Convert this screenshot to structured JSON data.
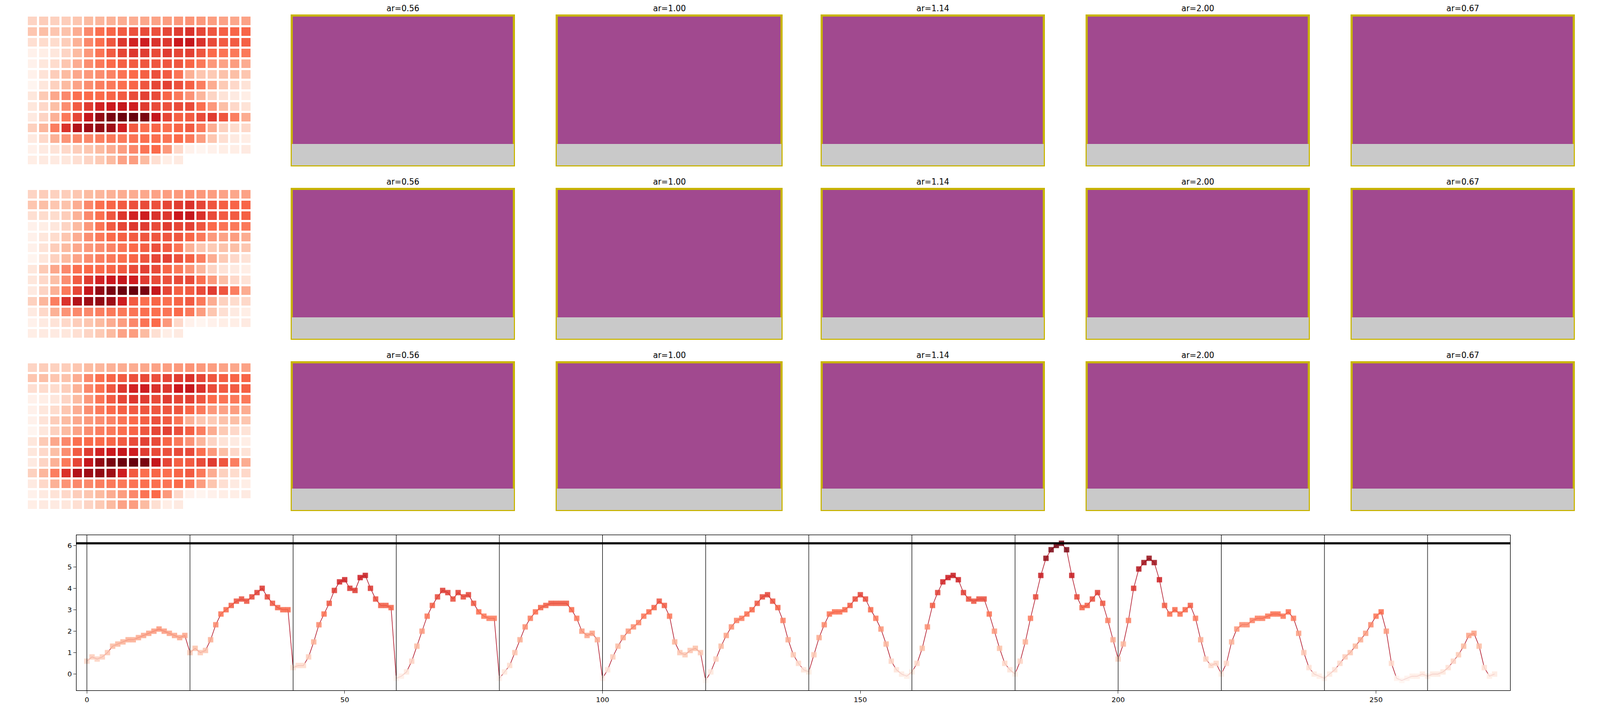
{
  "chart_data": [
    {
      "type": "line",
      "x": [
        0,
        1,
        2,
        3,
        4,
        5,
        6,
        7,
        8,
        9,
        10,
        11,
        12,
        13,
        14,
        15,
        16,
        17,
        18,
        19,
        20,
        21,
        22,
        23,
        24,
        25,
        26,
        27,
        28,
        29,
        30,
        31,
        32,
        33,
        34,
        35,
        36,
        37,
        38,
        39,
        40,
        41,
        42,
        43,
        44,
        45,
        46,
        47,
        48,
        49,
        50,
        51,
        52,
        53,
        54,
        55,
        56,
        57,
        58,
        59,
        60,
        61,
        62,
        63,
        64,
        65,
        66,
        67,
        68,
        69,
        70,
        71,
        72,
        73,
        74,
        75,
        76,
        77,
        78,
        79,
        80,
        81,
        82,
        83,
        84,
        85,
        86,
        87,
        88,
        89,
        90,
        91,
        92,
        93,
        94,
        95,
        96,
        97,
        98,
        99,
        100,
        101,
        102,
        103,
        104,
        105,
        106,
        107,
        108,
        109,
        110,
        111,
        112,
        113,
        114,
        115,
        116,
        117,
        118,
        119,
        120,
        121,
        122,
        123,
        124,
        125,
        126,
        127,
        128,
        129,
        130,
        131,
        132,
        133,
        134,
        135,
        136,
        137,
        138,
        139,
        140,
        141,
        142,
        143,
        144,
        145,
        146,
        147,
        148,
        149,
        150,
        151,
        152,
        153,
        154,
        155,
        156,
        157,
        158,
        159,
        160,
        161,
        162,
        163,
        164,
        165,
        166,
        167,
        168,
        169,
        170,
        171,
        172,
        173,
        174,
        175,
        176,
        177,
        178,
        179,
        180,
        181,
        182,
        183,
        184,
        185,
        186,
        187,
        188,
        189,
        190,
        191,
        192,
        193,
        194,
        195,
        196,
        197,
        198,
        199,
        200,
        201,
        202,
        203,
        204,
        205,
        206,
        207,
        208,
        209,
        210,
        211,
        212,
        213,
        214,
        215,
        216,
        217,
        218,
        219,
        220,
        221,
        222,
        223,
        224,
        225,
        226,
        227,
        228,
        229,
        230,
        231,
        232,
        233,
        234,
        235,
        236,
        237,
        238,
        239,
        240,
        241,
        242,
        243,
        244,
        245,
        246,
        247,
        248,
        249,
        250,
        251,
        252,
        253,
        254,
        255,
        256,
        257,
        258,
        259,
        260,
        261,
        262,
        263,
        264,
        265,
        266,
        267,
        268,
        269,
        270,
        271,
        272,
        273
      ],
      "values": [
        0.6,
        0.8,
        0.7,
        0.8,
        1.0,
        1.3,
        1.4,
        1.5,
        1.6,
        1.6,
        1.7,
        1.8,
        1.9,
        2.0,
        2.1,
        2.0,
        1.9,
        1.8,
        1.7,
        1.8,
        1.0,
        1.2,
        1.0,
        1.1,
        1.6,
        2.3,
        2.8,
        3.0,
        3.2,
        3.4,
        3.5,
        3.4,
        3.6,
        3.8,
        4.0,
        3.6,
        3.3,
        3.1,
        3.0,
        3.0,
        0.3,
        0.4,
        0.4,
        0.8,
        1.5,
        2.3,
        2.8,
        3.3,
        3.9,
        4.3,
        4.4,
        4.0,
        3.9,
        4.5,
        4.6,
        4.0,
        3.5,
        3.2,
        3.2,
        3.1,
        -0.2,
        -0.1,
        0.1,
        0.6,
        1.3,
        2.0,
        2.7,
        3.2,
        3.6,
        3.9,
        3.8,
        3.5,
        3.8,
        3.6,
        3.7,
        3.3,
        2.9,
        2.7,
        2.6,
        2.6,
        -0.2,
        0.1,
        0.4,
        1.0,
        1.6,
        2.2,
        2.6,
        2.9,
        3.1,
        3.2,
        3.3,
        3.3,
        3.3,
        3.3,
        3.0,
        2.6,
        2.0,
        1.8,
        1.9,
        1.6,
        -0.2,
        0.2,
        0.8,
        1.3,
        1.7,
        2.0,
        2.2,
        2.4,
        2.7,
        2.9,
        3.1,
        3.4,
        3.2,
        2.7,
        1.5,
        1.0,
        0.9,
        1.1,
        1.2,
        1.0,
        -0.3,
        0.1,
        0.7,
        1.3,
        1.8,
        2.2,
        2.5,
        2.6,
        2.8,
        3.0,
        3.3,
        3.6,
        3.7,
        3.4,
        3.1,
        2.5,
        1.6,
        0.9,
        0.5,
        0.2,
        0.1,
        0.9,
        1.7,
        2.3,
        2.8,
        2.9,
        2.9,
        3.0,
        3.2,
        3.5,
        3.7,
        3.5,
        3.0,
        2.6,
        2.1,
        1.4,
        0.6,
        0.2,
        0.0,
        -0.1,
        0.1,
        0.5,
        1.2,
        2.2,
        3.2,
        3.8,
        4.3,
        4.5,
        4.6,
        4.4,
        3.8,
        3.5,
        3.4,
        3.5,
        3.5,
        2.8,
        2.0,
        1.2,
        0.5,
        0.2,
        0.0,
        0.6,
        1.5,
        2.6,
        3.6,
        4.6,
        5.4,
        5.8,
        6.0,
        6.1,
        5.8,
        4.6,
        3.6,
        3.1,
        3.2,
        3.5,
        3.8,
        3.3,
        2.5,
        1.6,
        0.7,
        1.4,
        2.5,
        4.0,
        4.9,
        5.2,
        5.4,
        5.2,
        4.4,
        3.2,
        2.8,
        3.0,
        2.8,
        3.0,
        3.2,
        2.6,
        1.6,
        0.7,
        0.4,
        0.5,
        0.0,
        0.5,
        1.5,
        2.1,
        2.3,
        2.3,
        2.5,
        2.6,
        2.6,
        2.7,
        2.8,
        2.8,
        2.7,
        2.9,
        2.6,
        1.9,
        1.0,
        0.3,
        0.0,
        -0.1,
        -0.2,
        0.0,
        0.2,
        0.5,
        0.8,
        1.0,
        1.3,
        1.6,
        1.9,
        2.3,
        2.7,
        2.9,
        2.0,
        0.5,
        -0.2,
        -0.3,
        -0.2,
        -0.1,
        -0.1,
        0.0,
        -0.1,
        0.0,
        0.0,
        0.1,
        0.3,
        0.6,
        0.9,
        1.3,
        1.8,
        1.9,
        1.3,
        0.3,
        -0.1,
        0.0
      ],
      "xlim": [
        -2,
        276
      ],
      "ylim": [
        -0.76,
        6.48
      ],
      "xticks": [
        0,
        50,
        100,
        150,
        200,
        250
      ],
      "yticks": [
        0,
        1,
        2,
        3,
        4,
        5,
        6
      ],
      "vlines": [
        0,
        20,
        40,
        60,
        80,
        100,
        120,
        140,
        160,
        180,
        200,
        220,
        240,
        260
      ],
      "hline": 6.1,
      "grid": false,
      "marker": "square",
      "color": "#b2182b"
    },
    {
      "type": "image_grid",
      "titles": [
        "ar=0.56",
        "ar=1.00",
        "ar=1.14",
        "ar=2.00",
        "ar=0.67"
      ]
    }
  ]
}
